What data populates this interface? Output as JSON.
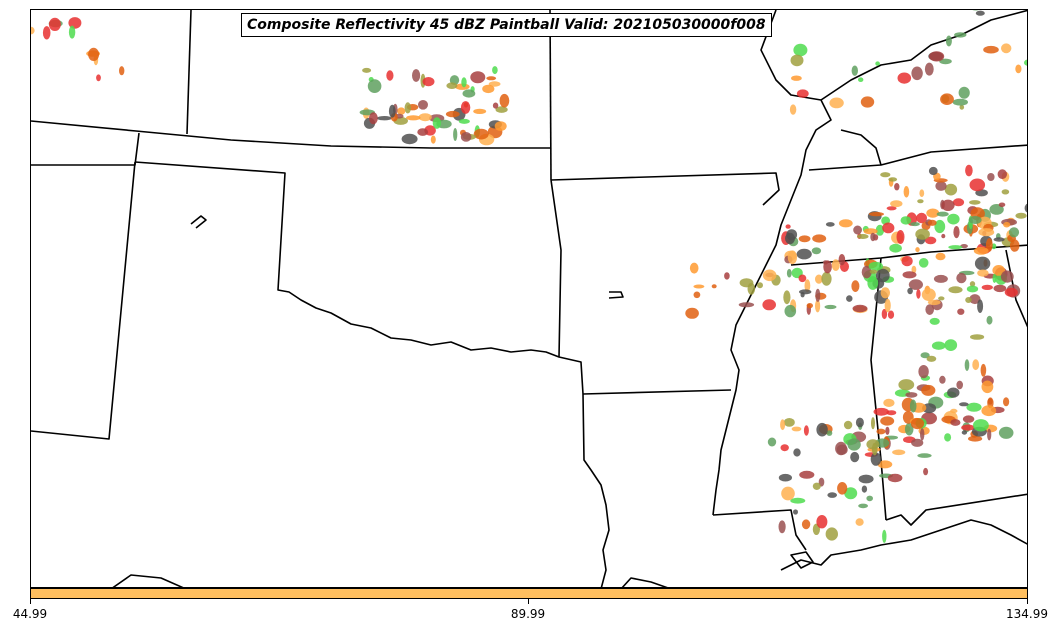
{
  "title": "Composite Reflectivity 45 dBZ Paintball Valid: 202105030000f008",
  "colorbar": {
    "color": "#ffbf5f",
    "ticks": [
      "44.99",
      "89.99",
      "134.99"
    ]
  },
  "palette": {
    "green": "#4fdc4f",
    "dark_green": "#5fa05f",
    "olive": "#a0a040",
    "orange": "#ff9a30",
    "light_orange": "#ffb050",
    "red": "#e83030",
    "dark_red": "#a84040",
    "brown_red": "#9a5050",
    "gray": "#505050",
    "dark_orange": "#e06010"
  }
}
